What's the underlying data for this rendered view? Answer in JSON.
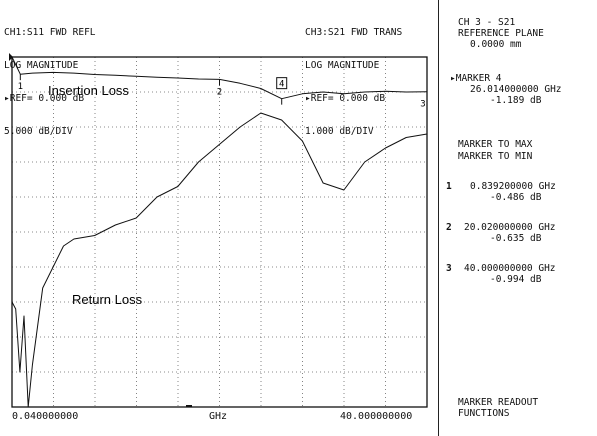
{
  "header": {
    "ch1": [
      "CH1:S11 FWD REFL",
      "LOG MAGNITUDE",
      "▸REF= 0.000 dB",
      "5.000 dB/DIV"
    ],
    "ch3": [
      "CH3:S21 FWD TRANS",
      "LOG MAGNITUDE",
      "▸REF= 0.000 dB",
      "1.000 dB/DIV"
    ]
  },
  "panel": {
    "title": [
      "CH 3 - S21",
      "REFERENCE PLANE",
      "0.0000 mm"
    ],
    "active_marker": [
      "▸MARKER 4",
      "26.014000000 GHz",
      "-1.189 dB"
    ],
    "menu": [
      "MARKER TO MAX",
      "MARKER TO MIN"
    ],
    "markers": [
      {
        "num": "1",
        "freq": "0.839200000 GHz",
        "val": "-0.486 dB"
      },
      {
        "num": "2",
        "freq": "20.020000000 GHz",
        "val": "-0.635 dB"
      },
      {
        "num": "3",
        "freq": "40.000000000 GHz",
        "val": "-0.994 dB"
      }
    ],
    "footer": [
      "MARKER READOUT",
      "FUNCTIONS"
    ]
  },
  "chart_data": {
    "type": "line",
    "x_unit": "GHz",
    "xlim": [
      0.04,
      40.0
    ],
    "x_tick_labels": [
      "0.040000000",
      "GHz",
      "40.000000000"
    ],
    "annotations": [
      "Insertion Loss",
      "Return Loss"
    ],
    "marker_labels": [
      "1",
      "2",
      "4",
      "3"
    ],
    "series": [
      {
        "name": "Insertion Loss",
        "channel": "CH3 S21",
        "reference_db": 0.0,
        "db_per_div": 1.0,
        "x": [
          0.04,
          0.84,
          2,
          4,
          6,
          8,
          10,
          12,
          14,
          16,
          18,
          20.02,
          22,
          24,
          26.01,
          28,
          30,
          32,
          34,
          36,
          38,
          40
        ],
        "y": [
          0.0,
          -0.49,
          -0.46,
          -0.44,
          -0.46,
          -0.5,
          -0.52,
          -0.55,
          -0.58,
          -0.6,
          -0.63,
          -0.64,
          -0.75,
          -0.9,
          -1.19,
          -1.05,
          -1.0,
          -1.05,
          -1.0,
          -0.98,
          -1.0,
          -0.99
        ]
      },
      {
        "name": "Return Loss",
        "channel": "CH1 S11",
        "reference_db": 0.0,
        "db_per_div": 5.0,
        "x": [
          0.04,
          0.4,
          0.8,
          1.2,
          1.6,
          2,
          3,
          4,
          5,
          6,
          8,
          10,
          12,
          14,
          16,
          18,
          20,
          22,
          24,
          26,
          28,
          30,
          32,
          34,
          36,
          38,
          40
        ],
        "y": [
          -35,
          -36,
          -45,
          -37,
          -50,
          -44,
          -33,
          -30,
          -27,
          -26,
          -25.5,
          -24,
          -23,
          -20,
          -18.5,
          -15,
          -12.5,
          -10,
          -8,
          -9,
          -12,
          -18,
          -19,
          -15,
          -13,
          -11.5,
          -11
        ]
      }
    ]
  }
}
